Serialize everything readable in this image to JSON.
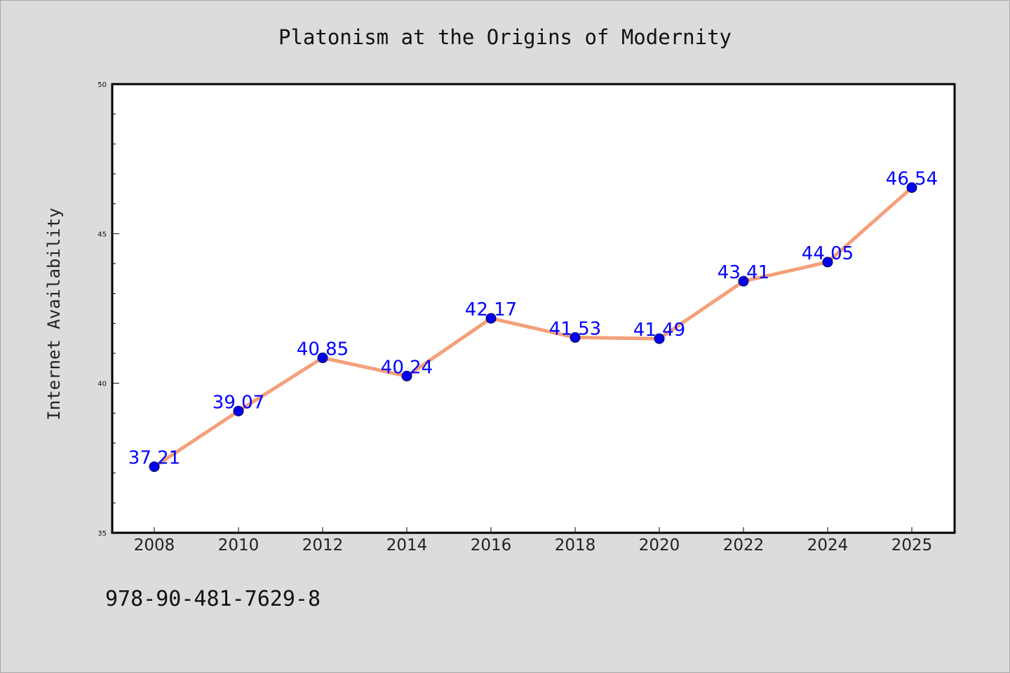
{
  "chart_data": {
    "type": "line",
    "title": "Platonism at the Origins of Modernity",
    "xlabel": "",
    "ylabel": "Internet Availability",
    "categories": [
      "2008",
      "2010",
      "2012",
      "2014",
      "2016",
      "2018",
      "2020",
      "2022",
      "2024",
      "2025"
    ],
    "values": [
      37.21,
      39.07,
      40.85,
      40.24,
      42.17,
      41.53,
      41.49,
      43.41,
      44.05,
      46.54
    ],
    "data_labels": [
      "37.21",
      "39.07",
      "40.85",
      "40.24",
      "42.17",
      "41.53",
      "41.49",
      "43.41",
      "44.05",
      "46.54"
    ],
    "ylim": [
      35,
      50
    ],
    "yticks": [
      "35",
      "40",
      "45",
      "50"
    ],
    "grid": false,
    "line_color": "#f4a07a",
    "marker_color": "#0000ee",
    "label_color": "#0000ff",
    "plot_background": "#ffffff",
    "background": "#dcdcdc"
  },
  "footer": {
    "isbn": "978-90-481-7629-8"
  }
}
